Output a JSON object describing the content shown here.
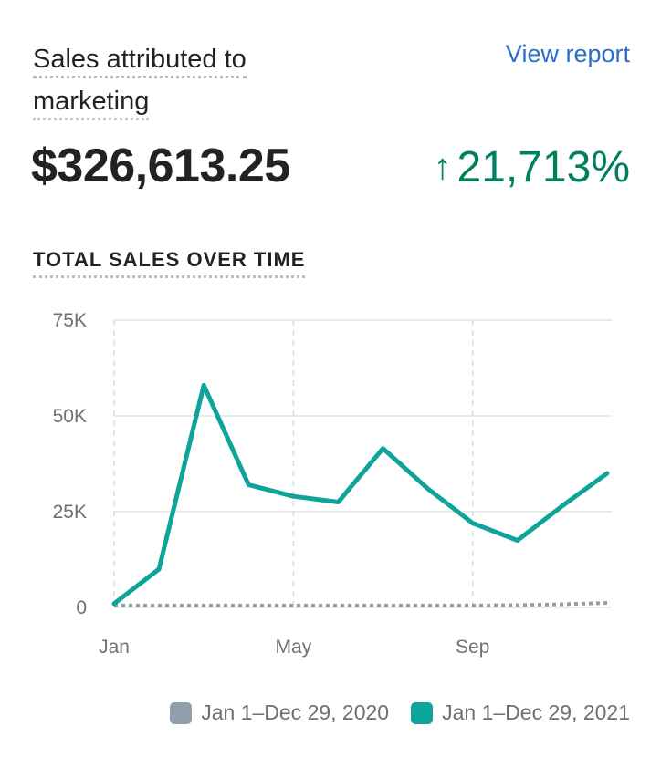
{
  "card": {
    "title": "Sales attributed to marketing",
    "view_report": "View report",
    "value": "$326,613.25",
    "change_arrow": "↑",
    "change": "21,713%",
    "section_title": "TOTAL SALES OVER TIME"
  },
  "colors": {
    "current": "#0ea49a",
    "previous": "#919eab",
    "positive": "#008060",
    "link": "#2c6ecb"
  },
  "chart_data": {
    "type": "line",
    "title": "",
    "x_tick_labels": [
      "Jan",
      "May",
      "Sep"
    ],
    "y_tick_labels": [
      "0",
      "25K",
      "50K",
      "75K"
    ],
    "y_ticks": [
      0,
      25000,
      50000,
      75000
    ],
    "ylim": [
      0,
      75000
    ],
    "x": [
      "Jan 1",
      "Feb 1",
      "Mar 1",
      "Apr 1",
      "May 1",
      "Jun 1",
      "Jul 1",
      "Aug 1",
      "Sep 1",
      "Oct 1",
      "Nov 1",
      "Dec 29"
    ],
    "series": [
      {
        "name": "Jan 1–Dec 29, 2020",
        "color": "#919eab",
        "style": "dotted",
        "values": [
          500,
          500,
          500,
          500,
          500,
          500,
          500,
          500,
          500,
          600,
          800,
          1200
        ]
      },
      {
        "name": "Jan 1–Dec 29, 2021",
        "color": "#0ea49a",
        "style": "solid",
        "values": [
          1000,
          10000,
          58000,
          32000,
          29000,
          27500,
          41500,
          31000,
          22000,
          17500,
          26500,
          35000
        ]
      }
    ],
    "grid": true,
    "legend_position": "bottom-right"
  }
}
